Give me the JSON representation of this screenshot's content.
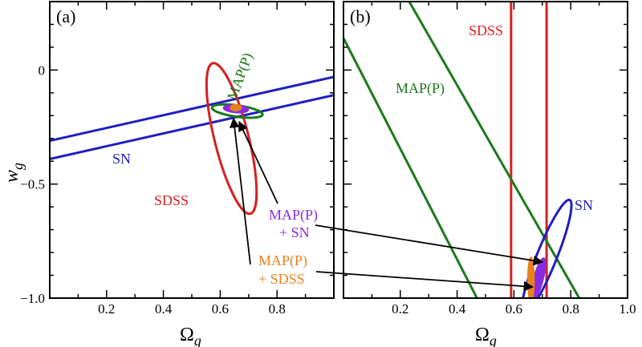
{
  "chart_data": [
    {
      "type": "line",
      "panel_label": "(a)",
      "xlabel_base": "Ω",
      "xlabel_sub": "g",
      "ylabel_base": "w",
      "ylabel_sub": "g",
      "xlim": [
        0.0,
        1.0
      ],
      "ylim": [
        -1.0,
        0.3
      ],
      "xticks": [
        0.2,
        0.4,
        0.6,
        0.8
      ],
      "xticklabels": [
        "0.2",
        "0.4",
        "0.6",
        "0.8"
      ],
      "yticks": [
        0.0,
        -0.5,
        -1.0
      ],
      "yticklabels": [
        "0",
        "−0.5",
        "−1.0"
      ],
      "series": [
        {
          "name": "SN",
          "color": "#1f1fbf",
          "shape": "band",
          "lines": [
            [
              [
                0.0,
                -0.39
              ],
              [
                1.0,
                -0.11
              ]
            ],
            [
              [
                0.0,
                -0.31
              ],
              [
                1.0,
                -0.03
              ]
            ]
          ]
        },
        {
          "name": "SDSS",
          "color": "#d62020",
          "shape": "ellipse",
          "center": [
            0.64,
            -0.3
          ],
          "rx": 0.06,
          "ry": 0.34,
          "tilt": -14
        },
        {
          "name": "MAP(P)",
          "color": "#1a7a1a",
          "shape": "ellipse",
          "center": [
            0.66,
            -0.18
          ],
          "rx": 0.09,
          "ry": 0.025,
          "tilt": 8
        },
        {
          "name": "MAP(P) + SN",
          "color": "#8a2be2",
          "shape": "filled-ellipse",
          "center": [
            0.655,
            -0.17
          ],
          "rx": 0.045,
          "ry": 0.018,
          "tilt": 5
        },
        {
          "name": "MAP(P) + SDSS",
          "color": "#e8821e",
          "shape": "filled-ellipse",
          "center": [
            0.655,
            -0.165
          ],
          "rx": 0.02,
          "ry": 0.015,
          "tilt": 0
        }
      ],
      "labels": {
        "sn": "SN",
        "sdss": "SDSS",
        "map": "MAP(P)"
      }
    },
    {
      "type": "line",
      "panel_label": "(b)",
      "xlabel_base": "Ω",
      "xlabel_sub": "g",
      "xlim": [
        0.0,
        1.0
      ],
      "ylim": [
        -1.0,
        0.3
      ],
      "xticks": [
        0.2,
        0.4,
        0.6,
        0.8,
        1.0
      ],
      "xticklabels": [
        "0.2",
        "0.4",
        "0.6",
        "0.8",
        "1.0"
      ],
      "series": [
        {
          "name": "SDSS",
          "color": "#d62020",
          "shape": "band",
          "lines": [
            [
              [
                0.59,
                0.3
              ],
              [
                0.59,
                -1.0
              ]
            ],
            [
              [
                0.715,
                0.3
              ],
              [
                0.715,
                -1.0
              ]
            ]
          ]
        },
        {
          "name": "MAP(P)",
          "color": "#1a7a1a",
          "shape": "band",
          "lines": [
            [
              [
                0.0,
                0.14
              ],
              [
                0.47,
                -1.0
              ]
            ],
            [
              [
                0.19,
                0.39
              ],
              [
                0.83,
                -1.0
              ]
            ]
          ]
        },
        {
          "name": "SN",
          "color": "#1f1fbf",
          "shape": "ellipse",
          "center": [
            0.715,
            -0.82
          ],
          "rx": 0.035,
          "ry": 0.27,
          "tilt": 22
        },
        {
          "name": "MAP(P) + SN",
          "color": "#8a2be2",
          "shape": "filled-ellipse",
          "center": [
            0.685,
            -0.92
          ],
          "rx": 0.018,
          "ry": 0.1,
          "tilt": 15
        },
        {
          "name": "MAP(P) + SDSS",
          "color": "#e8821e",
          "shape": "filled-ellipse",
          "center": [
            0.66,
            -0.92
          ],
          "rx": 0.012,
          "ry": 0.1,
          "tilt": 0
        }
      ],
      "labels": {
        "sn": "SN",
        "sdss": "SDSS",
        "map": "MAP(P)"
      }
    }
  ],
  "annotations": {
    "map_sn_line1": "MAP(P)",
    "map_sn_line2": "+ SN",
    "map_sdss_line1": "MAP(P)",
    "map_sdss_line2": "+ SDSS"
  }
}
